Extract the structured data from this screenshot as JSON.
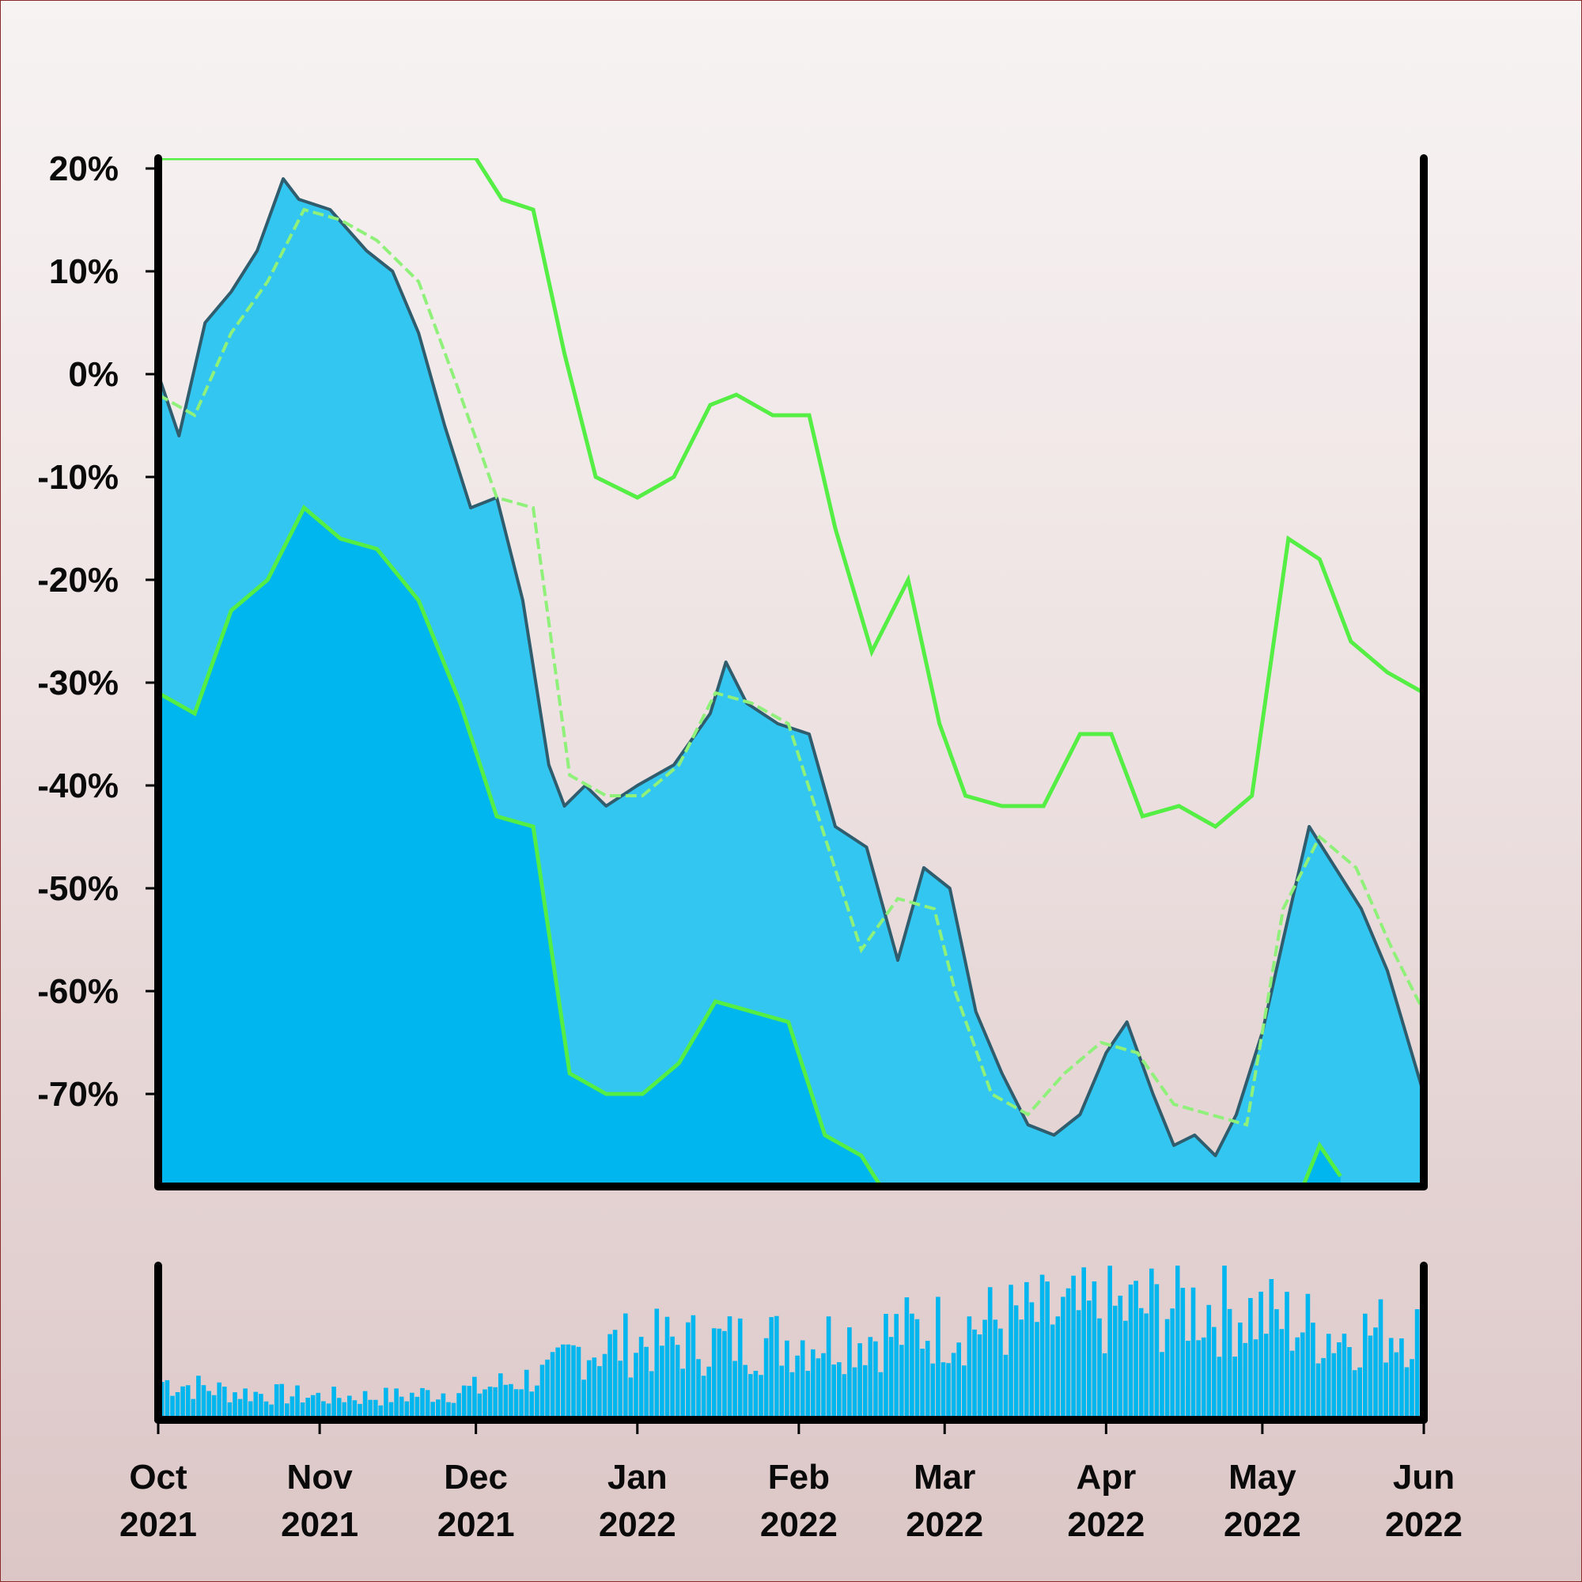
{
  "chart_data": {
    "type": "area",
    "title": "",
    "xlabel": "",
    "ylabel": "",
    "x_ticks": [
      {
        "month": "Oct",
        "year": "2021",
        "date": "2021-10-01"
      },
      {
        "month": "Nov",
        "year": "2021",
        "date": "2021-11-01"
      },
      {
        "month": "Dec",
        "year": "2021",
        "date": "2021-12-01"
      },
      {
        "month": "Jan",
        "year": "2022",
        "date": "2022-01-01"
      },
      {
        "month": "Feb",
        "year": "2022",
        "date": "2022-02-01"
      },
      {
        "month": "Mar",
        "year": "2022",
        "date": "2022-03-01"
      },
      {
        "month": "Apr",
        "year": "2022",
        "date": "2022-04-01"
      },
      {
        "month": "May",
        "year": "2022",
        "date": "2022-05-01"
      },
      {
        "month": "Jun",
        "year": "2022",
        "date": "2022-06-01"
      }
    ],
    "y_ticks": [
      "20%",
      "10%",
      "0%",
      "-10%",
      "-20%",
      "-30%",
      "-40%",
      "-50%",
      "-60%",
      "-70%"
    ],
    "y_tick_values": [
      20,
      10,
      0,
      -10,
      -20,
      -30,
      -40,
      -50,
      -60,
      -70
    ],
    "ylim": [
      -79,
      21
    ],
    "xlim": [
      "2021-10-01",
      "2022-06-01"
    ],
    "grid": false,
    "legend": "none",
    "colors": {
      "price_fill": "#33c6f0",
      "price_line": "#2f5d6e",
      "lower_band_fill": "#00b6ee",
      "band_lines": "#55ee44",
      "volume": "#00b6ee",
      "axes": "#000000"
    },
    "series": [
      {
        "role": "price",
        "x": [
          "2021-10-01",
          "2021-10-05",
          "2021-10-10",
          "2021-10-15",
          "2021-10-20",
          "2021-10-25",
          "2021-10-28",
          "2021-11-03",
          "2021-11-10",
          "2021-11-15",
          "2021-11-20",
          "2021-11-25",
          "2021-11-30",
          "2021-12-05",
          "2021-12-10",
          "2021-12-15",
          "2021-12-18",
          "2021-12-22",
          "2021-12-26",
          "2022-01-01",
          "2022-01-08",
          "2022-01-15",
          "2022-01-18",
          "2022-01-22",
          "2022-01-28",
          "2022-02-03",
          "2022-02-08",
          "2022-02-14",
          "2022-02-20",
          "2022-02-25",
          "2022-03-02",
          "2022-03-07",
          "2022-03-12",
          "2022-03-17",
          "2022-03-22",
          "2022-03-27",
          "2022-04-01",
          "2022-04-05",
          "2022-04-10",
          "2022-04-14",
          "2022-04-18",
          "2022-04-22",
          "2022-04-26",
          "2022-05-01",
          "2022-05-05",
          "2022-05-10",
          "2022-05-15",
          "2022-05-20",
          "2022-05-25",
          "2022-06-01"
        ],
        "y": [
          0,
          -6,
          5,
          8,
          12,
          19,
          17,
          16,
          12,
          10,
          4,
          -5,
          -13,
          -12,
          -22,
          -38,
          -42,
          -40,
          -42,
          -40,
          -38,
          -33,
          -28,
          -32,
          -34,
          -35,
          -44,
          -46,
          -57,
          -48,
          -50,
          -62,
          -68,
          -73,
          -74,
          -72,
          -66,
          -63,
          -70,
          -75,
          -74,
          -76,
          -72,
          -64,
          -55,
          -44,
          -48,
          -52,
          -58,
          -70
        ]
      },
      {
        "role": "moving-average",
        "style": "dashed",
        "x": [
          "2021-10-01",
          "2021-10-08",
          "2021-10-15",
          "2021-10-22",
          "2021-10-29",
          "2021-11-05",
          "2021-11-12",
          "2021-11-20",
          "2021-11-28",
          "2021-12-05",
          "2021-12-12",
          "2021-12-19",
          "2021-12-26",
          "2022-01-02",
          "2022-01-09",
          "2022-01-16",
          "2022-01-23",
          "2022-01-30",
          "2022-02-06",
          "2022-02-13",
          "2022-02-20",
          "2022-02-27",
          "2022-03-03",
          "2022-03-10",
          "2022-03-17",
          "2022-03-24",
          "2022-03-31",
          "2022-04-07",
          "2022-04-14",
          "2022-04-21",
          "2022-04-28",
          "2022-05-05",
          "2022-05-12",
          "2022-05-19",
          "2022-05-26",
          "2022-06-01"
        ],
        "y": [
          -2,
          -4,
          4,
          9,
          16,
          15,
          13,
          9,
          -2,
          -12,
          -13,
          -39,
          -41,
          -41,
          -38,
          -31,
          -32,
          -34,
          -45,
          -56,
          -51,
          -52,
          -60,
          -70,
          -72,
          -68,
          -65,
          -66,
          -71,
          -72,
          -73,
          -52,
          -45,
          -48,
          -56,
          -62
        ]
      },
      {
        "role": "upper-band",
        "x": [
          "2021-10-01",
          "2021-11-01",
          "2021-12-01",
          "2021-12-06",
          "2021-12-12",
          "2021-12-18",
          "2021-12-24",
          "2022-01-01",
          "2022-01-08",
          "2022-01-15",
          "2022-01-20",
          "2022-01-27",
          "2022-02-03",
          "2022-02-08",
          "2022-02-15",
          "2022-02-22",
          "2022-02-28",
          "2022-03-05",
          "2022-03-12",
          "2022-03-20",
          "2022-03-27",
          "2022-04-02",
          "2022-04-08",
          "2022-04-15",
          "2022-04-22",
          "2022-04-29",
          "2022-05-06",
          "2022-05-12",
          "2022-05-18",
          "2022-05-25",
          "2022-06-01"
        ],
        "y": [
          21,
          21,
          21,
          17,
          16,
          2,
          -10,
          -12,
          -10,
          -3,
          -2,
          -4,
          -4,
          -15,
          -27,
          -20,
          -34,
          -41,
          -42,
          -42,
          -35,
          -35,
          -43,
          -42,
          -44,
          -41,
          -16,
          -18,
          -26,
          -29,
          -31
        ]
      },
      {
        "role": "lower-band",
        "x": [
          "2021-10-01",
          "2021-10-08",
          "2021-10-15",
          "2021-10-22",
          "2021-10-29",
          "2021-11-05",
          "2021-11-12",
          "2021-11-20",
          "2021-11-28",
          "2021-12-05",
          "2021-12-12",
          "2021-12-19",
          "2021-12-26",
          "2022-01-02",
          "2022-01-09",
          "2022-01-16",
          "2022-01-23",
          "2022-01-30",
          "2022-02-06",
          "2022-02-13",
          "2022-02-18",
          "2022-05-08",
          "2022-05-12",
          "2022-05-16"
        ],
        "y": [
          -31,
          -33,
          -23,
          -20,
          -13,
          -16,
          -17,
          -22,
          -32,
          -43,
          -44,
          -68,
          -70,
          -70,
          -67,
          -61,
          -62,
          -63,
          -74,
          -76,
          -80,
          -80,
          -75,
          -78
        ]
      }
    ],
    "volume": {
      "x": [
        "2021-10-01",
        "2021-10-15",
        "2021-11-01",
        "2021-11-15",
        "2021-12-01",
        "2021-12-15",
        "2021-12-20",
        "2022-01-01",
        "2022-01-15",
        "2022-02-01",
        "2022-02-15",
        "2022-03-01",
        "2022-03-15",
        "2022-04-01",
        "2022-04-15",
        "2022-05-01",
        "2022-05-15",
        "2022-06-01"
      ],
      "values": [
        0.25,
        0.18,
        0.15,
        0.15,
        0.2,
        0.3,
        0.45,
        0.5,
        0.5,
        0.52,
        0.55,
        0.6,
        0.65,
        0.7,
        0.75,
        0.68,
        0.55,
        0.6
      ]
    }
  }
}
